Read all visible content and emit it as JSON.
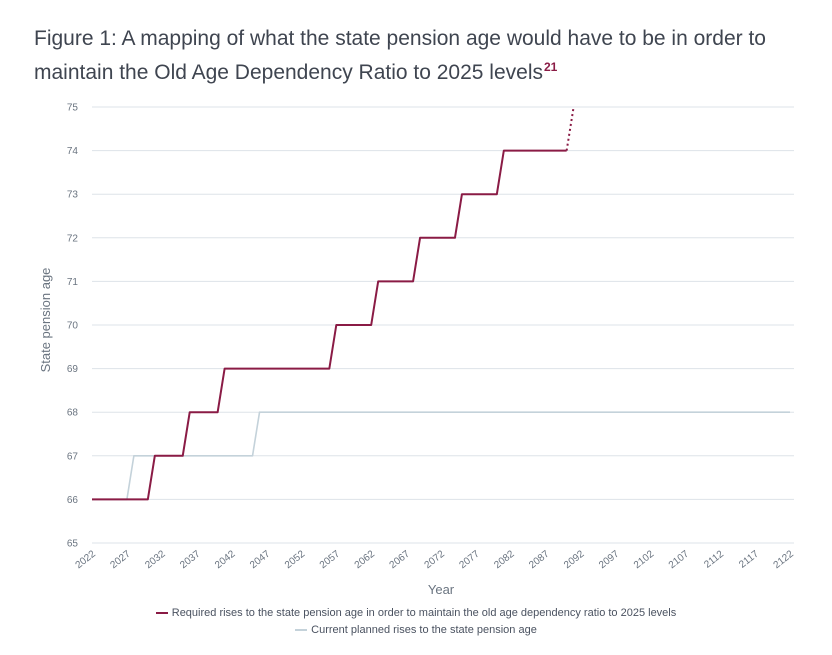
{
  "page": {
    "title": "Figure 1: A mapping of what the state pension age would have to be in order to maintain the Old Age Dependency Ratio to 2025 levels",
    "title_sup": "21"
  },
  "chart_data": {
    "type": "line",
    "xlabel": "Year",
    "ylabel": "State pension age",
    "ylim": [
      65,
      75
    ],
    "xlim": [
      2022,
      2122
    ],
    "x_ticks": [
      "2022",
      "2027",
      "2032",
      "2037",
      "2042",
      "2047",
      "2052",
      "2057",
      "2062",
      "2067",
      "2072",
      "2077",
      "2082",
      "2087",
      "2092",
      "2097",
      "2102",
      "2107",
      "2112",
      "2117",
      "2122"
    ],
    "y_ticks": [
      65,
      66,
      67,
      68,
      69,
      70,
      71,
      72,
      73,
      74,
      75
    ],
    "grid": "horizontal",
    "legend_position": "bottom",
    "colors": {
      "required": "#8a1b45",
      "current": "#c4d2da",
      "grid": "#dde3e8"
    },
    "series": [
      {
        "name": "Required rises to the state pension age in order to maintain the old age dependency ratio to 2025 levels",
        "x": [
          2022,
          2030,
          2031,
          2035,
          2036,
          2040,
          2041,
          2056,
          2057,
          2062,
          2063,
          2068,
          2069,
          2074,
          2075,
          2080,
          2081,
          2089,
          2090
        ],
        "y": [
          66,
          66,
          67,
          67,
          68,
          68,
          69,
          69,
          70,
          70,
          71,
          71,
          72,
          72,
          73,
          73,
          74,
          74,
          74
        ],
        "projection": {
          "x": [
            2090,
            2091
          ],
          "y": [
            74,
            75
          ],
          "style": "dotted"
        }
      },
      {
        "name": "Current planned rises to the state pension age",
        "x": [
          2022,
          2027,
          2028,
          2045,
          2046,
          2122
        ],
        "y": [
          66,
          66,
          67,
          67,
          68,
          68
        ]
      }
    ]
  }
}
